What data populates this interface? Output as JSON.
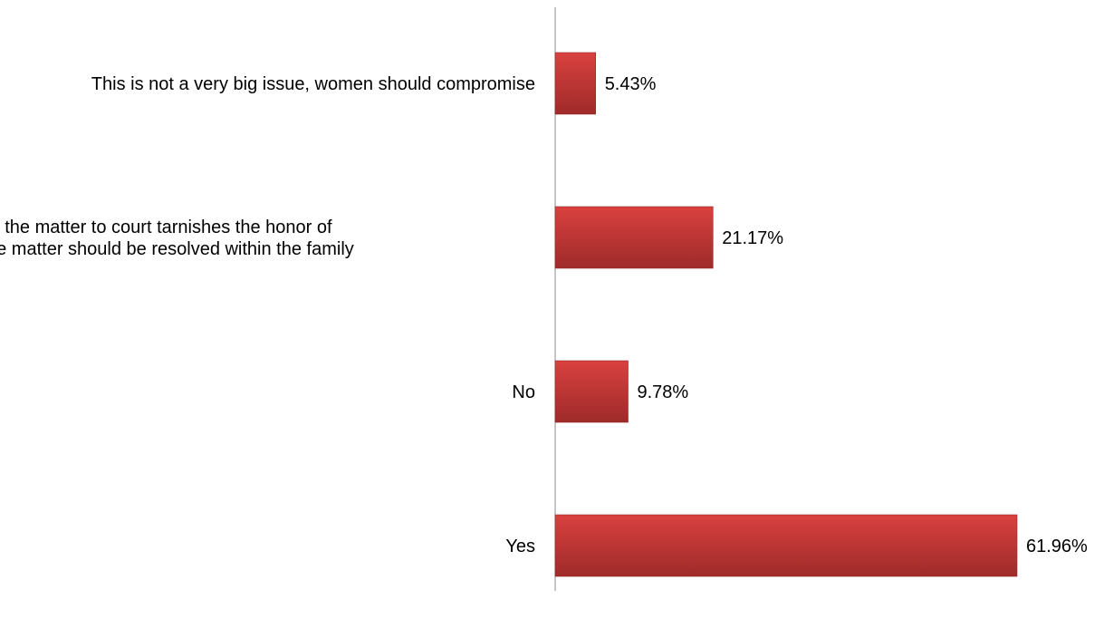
{
  "chart_data": {
    "type": "bar",
    "orientation": "horizontal",
    "categories": [
      "This is not a very big issue, women should compromise",
      "Taking the matter to court tarnishes the honor of family, the matter should be resolved within the family",
      "No",
      "Yes"
    ],
    "category_lines": [
      [
        "This is not a very big issue, women should compromise"
      ],
      [
        "Taking the matter to court tarnishes the honor of",
        "family, the matter should be resolved within the family"
      ],
      [
        "No"
      ],
      [
        "Yes"
      ]
    ],
    "values": [
      5.43,
      21.17,
      9.78,
      61.96
    ],
    "value_labels": [
      "5.43%",
      "21.17%",
      "9.78%",
      "61.96%"
    ],
    "unit": "%",
    "xlim": [
      0,
      70
    ],
    "grid": false,
    "legend": "none",
    "title": "",
    "xlabel": "",
    "ylabel": ""
  },
  "colors": {
    "bar_top": "#d9413f",
    "bar_bottom": "#9e2b2a",
    "bar_edge": "#8f2726",
    "axis": "#8c8c8c",
    "text": "#000000"
  }
}
